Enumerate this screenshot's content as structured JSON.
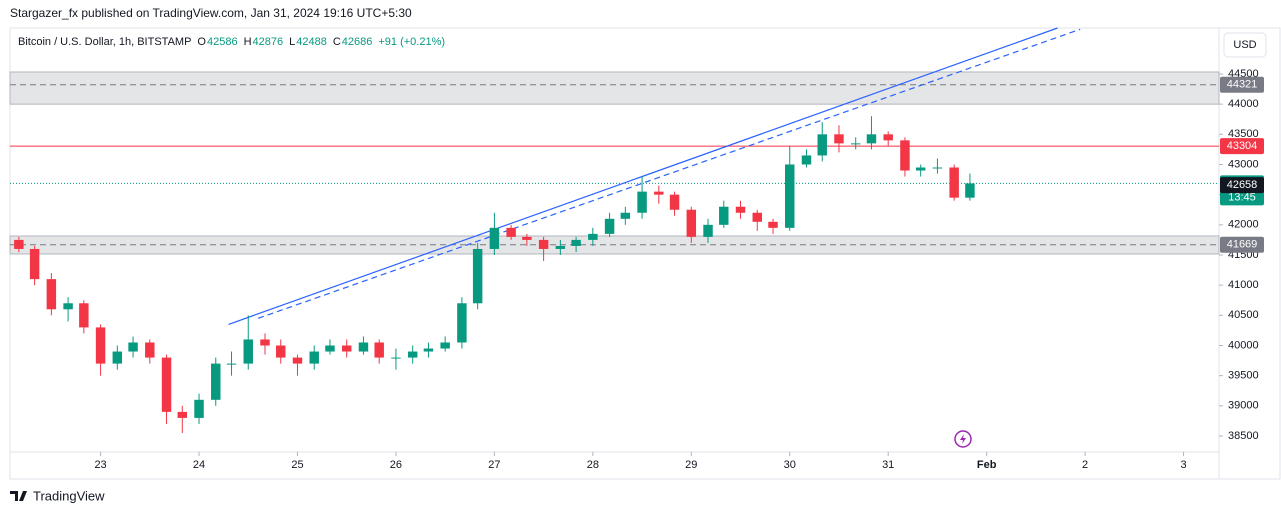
{
  "published": "Stargazer_fx published on TradingView.com, Jan 31, 2024 19:16 UTC+5:30",
  "footer": "TradingView",
  "currency_button": "USD",
  "legend": {
    "symbol": "Bitcoin / U.S. Dollar, 1h, BITSTAMP",
    "o_label": "O",
    "open": 42586,
    "h_label": "H",
    "high": 42876,
    "l_label": "L",
    "low": 42488,
    "c_label": "C",
    "close": 42686,
    "change": "+91 (+0.21%)"
  },
  "chart_data": {
    "type": "candlestick",
    "up_color": "#089981",
    "down_color": "#f23645",
    "x": [
      22.17,
      22.33,
      22.5,
      22.67,
      22.83,
      23,
      23.17,
      23.33,
      23.5,
      23.67,
      23.83,
      24,
      24.17,
      24.33,
      24.5,
      24.67,
      24.83,
      25,
      25.17,
      25.33,
      25.5,
      25.67,
      25.83,
      26,
      26.17,
      26.33,
      26.5,
      26.67,
      26.83,
      27,
      27.17,
      27.33,
      27.5,
      27.67,
      27.83,
      28,
      28.17,
      28.33,
      28.5,
      28.67,
      28.83,
      29,
      29.17,
      29.33,
      29.5,
      29.67,
      29.83,
      30,
      30.17,
      30.33,
      30.5,
      30.67,
      30.83,
      31,
      31.17,
      31.33,
      31.5,
      31.67,
      31.83
    ],
    "open": [
      41750,
      41600,
      41100,
      40600,
      40700,
      40300,
      39700,
      39900,
      40050,
      39800,
      38900,
      38800,
      39100,
      39700,
      39700,
      40100,
      40000,
      39800,
      39700,
      39900,
      40000,
      39900,
      40050,
      39800,
      39800,
      39900,
      39950,
      40050,
      40700,
      41600,
      41950,
      41800,
      41750,
      41600,
      41650,
      41750,
      41850,
      42100,
      42200,
      42550,
      42500,
      42250,
      41800,
      42000,
      42300,
      42200,
      42050,
      41950,
      43000,
      43150,
      43500,
      43350,
      43350,
      43500,
      43400,
      42900,
      42950,
      42950,
      42450
    ],
    "high": [
      41800,
      41650,
      41200,
      40800,
      40750,
      40350,
      40000,
      40150,
      40100,
      39850,
      39000,
      39200,
      39800,
      39900,
      40500,
      40200,
      40100,
      39850,
      40000,
      40100,
      40100,
      40150,
      40100,
      39950,
      40000,
      40050,
      40150,
      40800,
      41700,
      42200,
      42000,
      41850,
      41800,
      41750,
      41800,
      41950,
      42200,
      42300,
      42800,
      42650,
      42550,
      42300,
      42100,
      42400,
      42400,
      42250,
      42100,
      43300,
      43250,
      43700,
      43650,
      43450,
      43800,
      43550,
      43450,
      43000,
      43100,
      43000,
      42850
    ],
    "low": [
      41550,
      41000,
      40500,
      40400,
      40200,
      39500,
      39600,
      39800,
      39700,
      38700,
      38550,
      38700,
      39000,
      39500,
      39600,
      39850,
      39700,
      39500,
      39600,
      39850,
      39800,
      39850,
      39700,
      39600,
      39700,
      39800,
      39900,
      39950,
      40600,
      41500,
      41750,
      41650,
      41400,
      41500,
      41550,
      41650,
      41800,
      42000,
      42100,
      42350,
      42150,
      41700,
      41700,
      41950,
      42100,
      41900,
      41850,
      41900,
      42950,
      43050,
      43200,
      43250,
      43250,
      43300,
      42800,
      42800,
      42850,
      42400,
      42400
    ],
    "close": [
      41600,
      41100,
      40600,
      40700,
      40300,
      39700,
      39900,
      40050,
      39800,
      38900,
      38800,
      39100,
      39700,
      39700,
      40100,
      40000,
      39800,
      39700,
      39900,
      40000,
      39900,
      40050,
      39800,
      39800,
      39900,
      39950,
      40050,
      40700,
      41600,
      41950,
      41800,
      41750,
      41600,
      41650,
      41750,
      41850,
      42100,
      42200,
      42550,
      42500,
      42250,
      41800,
      42000,
      42300,
      42200,
      42050,
      41950,
      43000,
      43150,
      43500,
      43350,
      43350,
      43500,
      43400,
      42900,
      42950,
      42950,
      42450,
      42686
    ],
    "xlim": [
      22.08,
      34.36
    ],
    "ylim": [
      38235,
      45262
    ],
    "xticks": [
      23,
      24,
      25,
      26,
      27,
      28,
      29,
      30,
      31,
      {
        "value": 32,
        "label": "Feb"
      },
      {
        "value": 33,
        "label": "2"
      },
      {
        "value": 34,
        "label": "3"
      }
    ],
    "yticks": [
      38500,
      39000,
      39500,
      40000,
      40500,
      41000,
      41500,
      42000,
      42500,
      43000,
      43500,
      44000,
      44500
    ],
    "grid": false,
    "zones": [
      {
        "from": 44000,
        "to": 44533
      },
      {
        "from": 41517,
        "to": 41815
      }
    ],
    "trendlines": [
      {
        "x": [
          24.3,
          32.72
        ],
        "y": [
          40350,
          45262
        ],
        "style": "solid",
        "color": "#2962ff"
      },
      {
        "x": [
          24.6,
          32.95
        ],
        "y": [
          40450,
          45240
        ],
        "style": "dashed",
        "color": "#2962ff"
      }
    ],
    "levels": [
      {
        "value": 44321,
        "color": "#787b86",
        "style": "dashed"
      },
      {
        "value": 43304,
        "color": "#f23645",
        "style": "solid"
      },
      {
        "value": 42686,
        "color": "#089981",
        "style": "dotted",
        "countdown": "13:45"
      },
      {
        "value": 42658,
        "color": "#131722",
        "style": "none"
      },
      {
        "value": 41669,
        "color": "#787b86",
        "style": "dashed"
      }
    ]
  }
}
